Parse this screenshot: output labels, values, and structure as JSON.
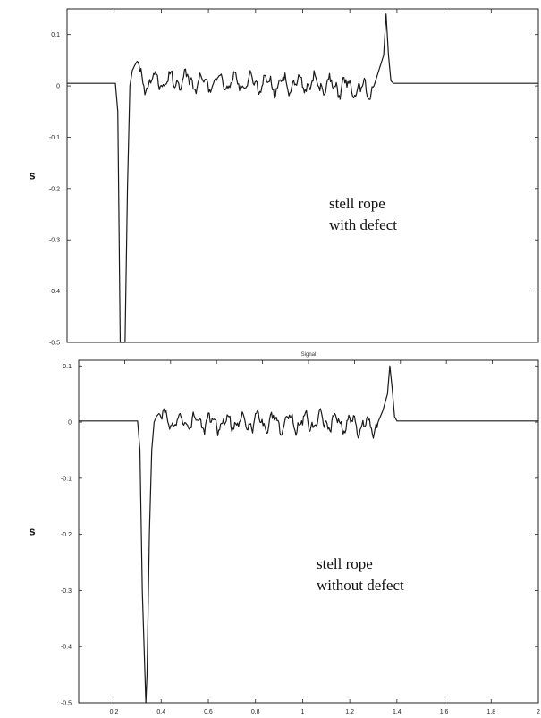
{
  "chart_data": [
    {
      "type": "line",
      "title": "",
      "ylabel": "s",
      "xlabel": "",
      "annotation": [
        "stell rope",
        "with defect"
      ],
      "xlim": [
        0.05,
        2.0
      ],
      "ylim": [
        -0.5,
        0.15
      ],
      "yticks": [
        0.1,
        0,
        -0.1,
        -0.2,
        -0.3,
        -0.4,
        -0.5
      ],
      "ytick_labels": [
        "0.1",
        "0",
        "-0.1",
        "-0.2",
        "-0.3",
        "-0.4",
        "-0.5"
      ],
      "xticks": [],
      "xtick_labels": [],
      "grid": false,
      "series": [
        {
          "x": [
            0.05,
            0.25,
            0.26,
            0.27,
            0.29,
            0.3,
            0.31,
            0.32,
            0.34,
            0.36,
            0.4,
            1.2,
            1.3,
            1.32,
            1.34,
            1.36,
            1.37,
            1.38,
            1.39,
            1.4,
            1.45,
            2.0
          ],
          "y": [
            0.005,
            0.005,
            -0.05,
            -0.5,
            -0.5,
            -0.2,
            0.0,
            0.03,
            0.05,
            0.0,
            0.01,
            0.0,
            -0.01,
            0.0,
            0.03,
            0.06,
            0.14,
            0.06,
            0.01,
            0.005,
            0.005,
            0.005
          ],
          "noise_range": [
            0.34,
            1.32
          ],
          "noise_amplitude": 0.025
        }
      ]
    },
    {
      "type": "line",
      "title": "Signal",
      "ylabel": "s",
      "xlabel": "",
      "annotation": [
        "stell rope",
        "without defect"
      ],
      "xlim": [
        0.05,
        2.0
      ],
      "ylim": [
        -0.5,
        0.11
      ],
      "yticks": [
        0.1,
        0,
        -0.1,
        -0.2,
        -0.3,
        -0.4,
        -0.5
      ],
      "ytick_labels": [
        "0.1",
        "0",
        "-0.1",
        "-0.2",
        "-0.3",
        "-0.4",
        "-0.5"
      ],
      "xticks": [
        0.2,
        0.4,
        0.6,
        0.8,
        1.0,
        1.2,
        1.4,
        1.6,
        1.8,
        2.0
      ],
      "xtick_labels": [
        "0.2",
        "0.4",
        "0.6",
        "0.8",
        "1",
        "1.2",
        "1.4",
        "1.6",
        "1.8",
        "2"
      ],
      "grid": false,
      "series": [
        {
          "x": [
            0.05,
            0.3,
            0.31,
            0.32,
            0.335,
            0.34,
            0.35,
            0.36,
            0.37,
            0.39,
            0.42,
            1.2,
            1.3,
            1.32,
            1.34,
            1.36,
            1.37,
            1.38,
            1.39,
            1.4,
            1.45,
            2.0
          ],
          "y": [
            0.002,
            0.002,
            -0.05,
            -0.3,
            -0.5,
            -0.45,
            -0.2,
            -0.05,
            0.0,
            0.02,
            0.0,
            0.0,
            -0.01,
            0.0,
            0.02,
            0.05,
            0.1,
            0.06,
            0.01,
            0.002,
            0.002,
            0.002
          ],
          "noise_range": [
            0.39,
            1.32
          ],
          "noise_amplitude": 0.022
        }
      ]
    }
  ],
  "styles": {
    "line_color": "#1a1a1a",
    "axis_color": "#222222",
    "background": "#ffffff"
  }
}
